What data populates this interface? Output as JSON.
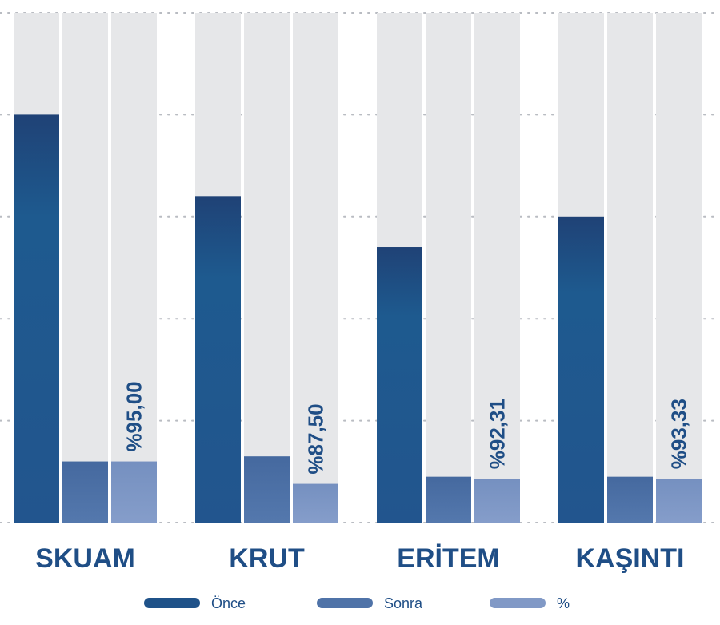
{
  "chart_data": {
    "type": "bar",
    "categories": [
      "SKUAM",
      "KRUT",
      "ERİTEM",
      "KAŞINTI"
    ],
    "series": [
      {
        "name": "Önce",
        "values": [
          4.0,
          3.2,
          2.7,
          3.0
        ],
        "color": "#1f5289"
      },
      {
        "name": "Sonra",
        "values": [
          0.6,
          0.65,
          0.45,
          0.45
        ],
        "color": "#4f73a8"
      },
      {
        "name": "%",
        "values": [
          0.6,
          0.38,
          0.43,
          0.43
        ],
        "color": "#8199c6"
      }
    ],
    "percent_labels": [
      "%95,00",
      "%87,50",
      "%92,31",
      "%93,33"
    ],
    "ylim": [
      0,
      5
    ],
    "grid": true,
    "legend_position": "bottom",
    "background_track_color": "#e6e7e9"
  }
}
